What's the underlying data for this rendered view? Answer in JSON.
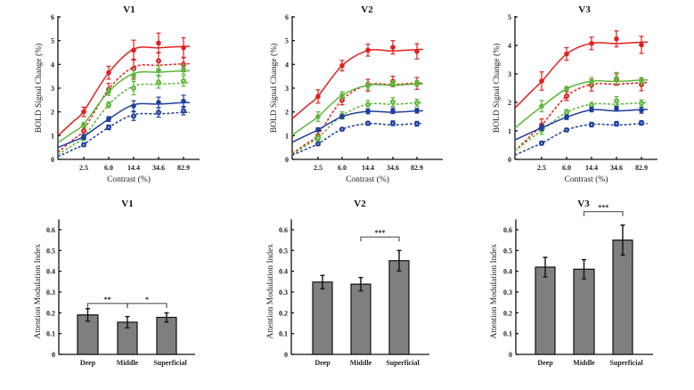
{
  "chart_data": [
    {
      "type": "line",
      "title": "V1",
      "xlabel": "Contrast (%)",
      "ylabel": "BOLD Signal Change (%)",
      "x": [
        "2.5",
        "6.0",
        "14.4",
        "34.6",
        "82.9"
      ],
      "ylim": [
        0,
        6
      ],
      "yticks": [
        "0",
        "1",
        "2",
        "3",
        "4",
        "5",
        "6"
      ],
      "series": [
        {
          "name": "red-solid",
          "color": "#e02020",
          "dash": false,
          "fit_start": 1.0,
          "values": [
            2.0,
            3.65,
            4.6,
            4.9,
            4.7
          ],
          "errors": [
            0.2,
            0.27,
            0.42,
            0.42,
            0.42
          ]
        },
        {
          "name": "red-dashed",
          "color": "#e02020",
          "dash": true,
          "fit_start": 0.3,
          "values": [
            1.2,
            2.95,
            3.82,
            4.15,
            4.0
          ],
          "errors": [
            0.2,
            0.25,
            0.4,
            0.35,
            0.3
          ]
        },
        {
          "name": "green-solid",
          "color": "#5cb83a",
          "dash": false,
          "fit_start": 0.7,
          "values": [
            1.45,
            2.85,
            3.55,
            3.75,
            3.8
          ],
          "errors": [
            0.1,
            0.15,
            0.2,
            0.2,
            0.2
          ]
        },
        {
          "name": "green-dashed",
          "color": "#5cb83a",
          "dash": true,
          "fit_start": 0.2,
          "values": [
            0.9,
            2.3,
            3.0,
            3.25,
            3.3
          ],
          "errors": [
            0.1,
            0.12,
            0.28,
            0.25,
            0.22
          ]
        },
        {
          "name": "blue-solid",
          "color": "#1f3f9e",
          "dash": false,
          "fit_start": 0.5,
          "values": [
            0.95,
            1.7,
            2.25,
            2.4,
            2.45
          ],
          "errors": [
            0.1,
            0.1,
            0.22,
            0.22,
            0.25
          ]
        },
        {
          "name": "blue-dashed",
          "color": "#1f3f9e",
          "dash": true,
          "fit_start": 0.12,
          "values": [
            0.62,
            1.35,
            1.82,
            1.98,
            2.05
          ],
          "errors": [
            0.08,
            0.1,
            0.18,
            0.2,
            0.18
          ]
        }
      ]
    },
    {
      "type": "line",
      "title": "V2",
      "xlabel": "Contrast (%)",
      "ylabel": "BOLD Signal Change (%)",
      "x": [
        "2.5",
        "6.0",
        "14.4",
        "34.6",
        "82.9"
      ],
      "ylim": [
        0,
        6
      ],
      "yticks": [
        "0",
        "1",
        "2",
        "3",
        "4",
        "5",
        "6"
      ],
      "series": [
        {
          "name": "red-solid",
          "color": "#e02020",
          "dash": false,
          "fit_start": 1.72,
          "values": [
            2.65,
            3.95,
            4.6,
            4.72,
            4.55
          ],
          "errors": [
            0.28,
            0.22,
            0.25,
            0.28,
            0.32
          ]
        },
        {
          "name": "red-dashed",
          "color": "#e02020",
          "dash": true,
          "fit_start": 0.25,
          "values": [
            1.0,
            2.5,
            3.12,
            3.28,
            3.2
          ],
          "errors": [
            0.2,
            0.2,
            0.25,
            0.22,
            0.25
          ]
        },
        {
          "name": "green-solid",
          "color": "#5cb83a",
          "dash": false,
          "fit_start": 1.02,
          "values": [
            1.8,
            2.7,
            3.1,
            3.2,
            3.2
          ],
          "errors": [
            0.2,
            0.15,
            0.15,
            0.12,
            0.12
          ]
        },
        {
          "name": "green-dashed",
          "color": "#5cb83a",
          "dash": true,
          "fit_start": 0.22,
          "values": [
            0.9,
            1.85,
            2.3,
            2.42,
            2.38
          ],
          "errors": [
            0.12,
            0.15,
            0.18,
            0.18,
            0.15
          ]
        },
        {
          "name": "blue-solid",
          "color": "#1f3f9e",
          "dash": false,
          "fit_start": 0.72,
          "values": [
            1.25,
            1.8,
            2.02,
            2.05,
            2.05
          ],
          "errors": [
            0.08,
            0.08,
            0.1,
            0.12,
            0.1
          ]
        },
        {
          "name": "blue-dashed",
          "color": "#1f3f9e",
          "dash": true,
          "fit_start": 0.18,
          "values": [
            0.65,
            1.27,
            1.52,
            1.52,
            1.5
          ],
          "errors": [
            0.06,
            0.06,
            0.08,
            0.1,
            0.1
          ]
        }
      ]
    },
    {
      "type": "line",
      "title": "V3",
      "xlabel": "Contrast (%)",
      "ylabel": "BOLD Signal Change (%)",
      "x": [
        "2.5",
        "6.0",
        "14.4",
        "34.6",
        "82.9"
      ],
      "ylim": [
        0,
        5
      ],
      "yticks": [
        "0",
        "1",
        "2",
        "3",
        "4",
        "5"
      ],
      "series": [
        {
          "name": "red-solid",
          "color": "#e02020",
          "dash": false,
          "fit_start": 1.8,
          "values": [
            2.75,
            3.7,
            4.07,
            4.23,
            4.02
          ],
          "errors": [
            0.32,
            0.22,
            0.22,
            0.28,
            0.3
          ]
        },
        {
          "name": "red-dashed",
          "color": "#e02020",
          "dash": true,
          "fit_start": 0.3,
          "values": [
            1.2,
            2.22,
            2.6,
            2.8,
            2.63
          ],
          "errors": [
            0.22,
            0.15,
            0.2,
            0.2,
            0.22
          ]
        },
        {
          "name": "green-solid",
          "color": "#5cb83a",
          "dash": false,
          "fit_start": 1.1,
          "values": [
            1.87,
            2.48,
            2.72,
            2.85,
            2.75
          ],
          "errors": [
            0.2,
            0.08,
            0.15,
            0.2,
            0.12
          ]
        },
        {
          "name": "green-dashed",
          "color": "#5cb83a",
          "dash": true,
          "fit_start": 0.3,
          "values": [
            1.03,
            1.65,
            1.9,
            2.05,
            1.97
          ],
          "errors": [
            0.15,
            0.1,
            0.1,
            0.15,
            0.12
          ]
        },
        {
          "name": "blue-solid",
          "color": "#1f3f9e",
          "dash": false,
          "fit_start": 0.68,
          "values": [
            1.12,
            1.48,
            1.75,
            1.78,
            1.72
          ],
          "errors": [
            0.1,
            0.08,
            0.08,
            0.08,
            0.1
          ]
        },
        {
          "name": "blue-dashed",
          "color": "#1f3f9e",
          "dash": true,
          "fit_start": 0.15,
          "values": [
            0.57,
            1.03,
            1.22,
            1.25,
            1.28
          ],
          "errors": [
            0.07,
            0.05,
            0.08,
            0.08,
            0.08
          ]
        }
      ]
    },
    {
      "type": "bar",
      "title": "V1",
      "xlabel": "",
      "ylabel": "Attention Modulation Index",
      "categories": [
        "Deep",
        "Middle",
        "Superficial"
      ],
      "values": [
        0.19,
        0.155,
        0.178
      ],
      "errors": [
        0.03,
        0.027,
        0.022
      ],
      "ylim": [
        0,
        0.65
      ],
      "yticks": [
        "0",
        "0.1",
        "0.2",
        "0.3",
        "0.4",
        "0.5",
        "0.6"
      ],
      "bar_color": "#7f7f7f",
      "significance": [
        {
          "from": 0,
          "to": 1,
          "label": "**"
        },
        {
          "from": 1,
          "to": 2,
          "label": "*"
        }
      ]
    },
    {
      "type": "bar",
      "title": "V2",
      "xlabel": "",
      "ylabel": "Attention Modulation Index",
      "categories": [
        "Deep",
        "Middle",
        "Superficial"
      ],
      "values": [
        0.348,
        0.338,
        0.451
      ],
      "errors": [
        0.032,
        0.032,
        0.049
      ],
      "ylim": [
        0,
        0.65
      ],
      "yticks": [
        "0",
        "0.1",
        "0.2",
        "0.3",
        "0.4",
        "0.5",
        "0.6"
      ],
      "bar_color": "#7f7f7f",
      "significance": [
        {
          "from": 1,
          "to": 2,
          "label": "***"
        }
      ]
    },
    {
      "type": "bar",
      "title": "V3",
      "xlabel": "",
      "ylabel": "Attention Modulation Index",
      "categories": [
        "Deep",
        "Middle",
        "Superficial"
      ],
      "values": [
        0.42,
        0.41,
        0.55
      ],
      "errors": [
        0.047,
        0.046,
        0.072
      ],
      "ylim": [
        0,
        0.65
      ],
      "yticks": [
        "0",
        "0.1",
        "0.2",
        "0.3",
        "0.4",
        "0.5",
        "0.6"
      ],
      "bar_color": "#7f7f7f",
      "significance": [
        {
          "from": 1,
          "to": 2,
          "label": "***"
        }
      ]
    }
  ]
}
